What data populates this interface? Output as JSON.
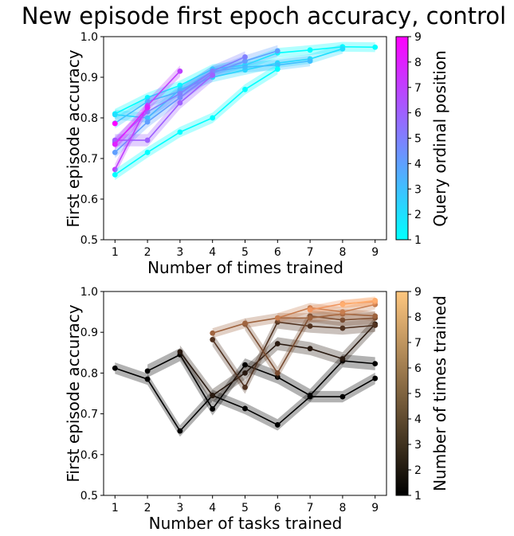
{
  "title": "New episode first epoch accuracy, control",
  "chart_data": [
    {
      "type": "line",
      "xlabel": "Number of times trained",
      "ylabel": "First episode accuracy",
      "xlim": [
        0.65,
        9.35
      ],
      "ylim": [
        0.5,
        1.0
      ],
      "xticks": [
        "1",
        "2",
        "3",
        "4",
        "5",
        "6",
        "7",
        "8",
        "9"
      ],
      "yticks": [
        "0.5",
        "0.6",
        "0.7",
        "0.8",
        "0.9",
        "1.0"
      ],
      "grid": false,
      "colorbar": {
        "label": "Query ordinal position",
        "colormap": "cool",
        "range": [
          1,
          9
        ],
        "ticks": [
          "1",
          "2",
          "3",
          "4",
          "5",
          "6",
          "7",
          "8",
          "9"
        ]
      },
      "series": [
        {
          "q": 1,
          "x": [
            1,
            2,
            3,
            4,
            5,
            6,
            7,
            8,
            9
          ],
          "y": [
            0.81,
            0.85,
            0.88,
            0.92,
            0.93,
            0.96,
            0.967,
            0.975,
            0.974
          ],
          "err": 0.012
        },
        {
          "q": 2,
          "x": [
            1,
            2,
            3,
            4,
            5,
            6,
            7,
            8
          ],
          "y": [
            0.808,
            0.8,
            0.87,
            0.9,
            0.918,
            0.935,
            0.945,
            0.97
          ],
          "err": 0.012
        },
        {
          "q": 3,
          "x": [
            1,
            2,
            3,
            4,
            5,
            6,
            7
          ],
          "y": [
            0.787,
            0.84,
            0.865,
            0.915,
            0.925,
            0.93,
            0.94
          ],
          "err": 0.013
        },
        {
          "q": 4,
          "x": [
            1,
            2,
            3,
            4,
            5,
            6
          ],
          "y": [
            0.715,
            0.79,
            0.85,
            0.91,
            0.94,
            0.965
          ],
          "err": 0.014
        },
        {
          "q": 5,
          "x": [
            1,
            2,
            3,
            4,
            5
          ],
          "y": [
            0.74,
            0.815,
            0.86,
            0.915,
            0.95
          ],
          "err": 0.014
        },
        {
          "q": 6,
          "x": [
            1,
            2,
            3,
            4
          ],
          "y": [
            0.745,
            0.745,
            0.837,
            0.905
          ],
          "err": 0.015
        },
        {
          "q": 7,
          "x": [
            1,
            2,
            3
          ],
          "y": [
            0.673,
            0.83,
            0.915
          ],
          "err": 0.014
        },
        {
          "q": 8,
          "x": [
            1,
            2
          ],
          "y": [
            0.735,
            0.825
          ],
          "err": 0.014
        },
        {
          "q": 9,
          "x": [
            1
          ],
          "y": [
            0.786
          ],
          "err": 0.012
        },
        {
          "q": 1,
          "x": [
            1,
            2,
            3,
            4,
            5,
            6
          ],
          "y": [
            0.66,
            0.715,
            0.765,
            0.8,
            0.87,
            0.92
          ],
          "err": 0.013
        }
      ]
    },
    {
      "type": "line",
      "xlabel": "Number of tasks trained",
      "ylabel": "First episode accuracy",
      "xlim": [
        0.65,
        9.35
      ],
      "ylim": [
        0.5,
        1.0
      ],
      "xticks": [
        "1",
        "2",
        "3",
        "4",
        "5",
        "6",
        "7",
        "8",
        "9"
      ],
      "yticks": [
        "0.5",
        "0.6",
        "0.7",
        "0.8",
        "0.9",
        "1.0"
      ],
      "grid": false,
      "colorbar": {
        "label": "Number of times trained",
        "colormap": "copper",
        "range": [
          1,
          9
        ],
        "ticks": [
          "1",
          "2",
          "3",
          "4",
          "5",
          "6",
          "7",
          "8",
          "9"
        ]
      },
      "series": [
        {
          "t": 1,
          "x": [
            1,
            2,
            3,
            4,
            5,
            6,
            7,
            8,
            9
          ],
          "y": [
            0.812,
            0.785,
            0.658,
            0.745,
            0.713,
            0.673,
            0.742,
            0.742,
            0.787
          ],
          "err": 0.014
        },
        {
          "t": 1,
          "x": [
            2,
            3,
            4,
            5,
            6,
            7,
            8,
            9
          ],
          "y": [
            0.805,
            0.845,
            0.712,
            0.82,
            0.79,
            0.745,
            0.83,
            0.823
          ],
          "err": 0.016
        },
        {
          "t": 2,
          "x": [
            3,
            4,
            5,
            6,
            7,
            8,
            9
          ],
          "y": [
            0.852,
            0.745,
            0.8,
            0.872,
            0.86,
            0.835,
            0.92
          ],
          "err": 0.016
        },
        {
          "t": 3,
          "x": [
            4,
            5,
            6,
            7,
            8,
            9
          ],
          "y": [
            0.882,
            0.765,
            0.925,
            0.915,
            0.91,
            0.917
          ],
          "err": 0.016
        },
        {
          "t": 4,
          "x": [
            5,
            6,
            7,
            8,
            9
          ],
          "y": [
            0.92,
            0.8,
            0.94,
            0.93,
            0.935
          ],
          "err": 0.015
        },
        {
          "t": 5,
          "x": [
            4,
            5,
            6,
            7,
            8,
            9
          ],
          "y": [
            0.898,
            0.922,
            0.935,
            0.935,
            0.945,
            0.94
          ],
          "err": 0.012
        },
        {
          "t": 6,
          "x": [
            6,
            7,
            8,
            9
          ],
          "y": [
            0.935,
            0.96,
            0.95,
            0.968
          ],
          "err": 0.012
        },
        {
          "t": 7,
          "x": [
            7,
            8,
            9
          ],
          "y": [
            0.955,
            0.97,
            0.975
          ],
          "err": 0.01
        },
        {
          "t": 8,
          "x": [
            8,
            9
          ],
          "y": [
            0.968,
            0.978
          ],
          "err": 0.01
        }
      ]
    }
  ]
}
